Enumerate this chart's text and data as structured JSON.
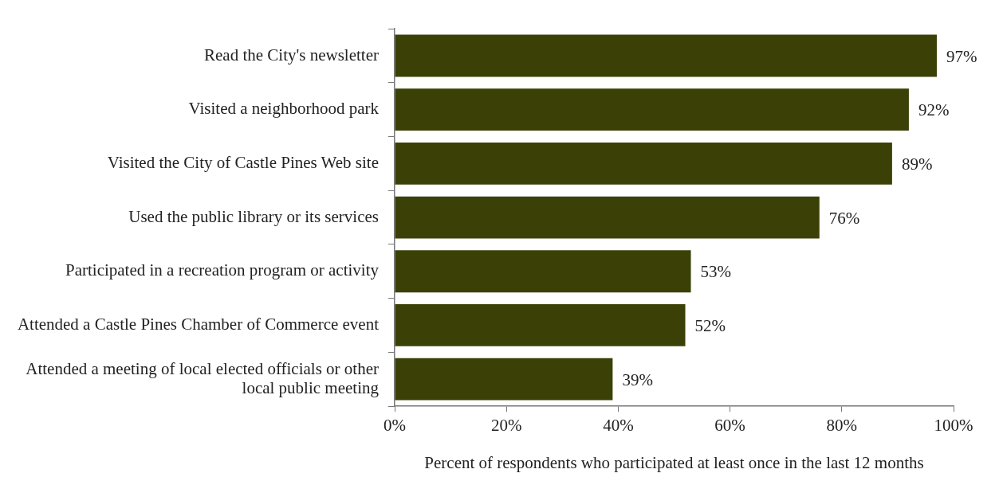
{
  "chart_data": {
    "type": "bar",
    "orientation": "horizontal",
    "categories": [
      "Read the City's newsletter",
      "Visited a neighborhood park",
      "Visited the City of Castle Pines Web site",
      "Used the public library or its services",
      "Participated in a recreation program or activity",
      "Attended a Castle Pines Chamber of Commerce event",
      "Attended a meeting of local elected officials or other local public meeting"
    ],
    "values": [
      97,
      92,
      89,
      76,
      53,
      52,
      39
    ],
    "value_labels": [
      "97%",
      "92%",
      "89%",
      "76%",
      "53%",
      "52%",
      "39%"
    ],
    "color": "#3b4106",
    "xlim": [
      0,
      100
    ],
    "xticks": [
      {
        "value": 0,
        "label": "0%"
      },
      {
        "value": 20,
        "label": "20%"
      },
      {
        "value": 40,
        "label": "40%"
      },
      {
        "value": 60,
        "label": "60%"
      },
      {
        "value": 80,
        "label": "80%"
      },
      {
        "value": 100,
        "label": "100%"
      }
    ],
    "xlabel": "Percent of respondents who participated at least once in the last 12 months",
    "grid": false,
    "legend": false
  }
}
